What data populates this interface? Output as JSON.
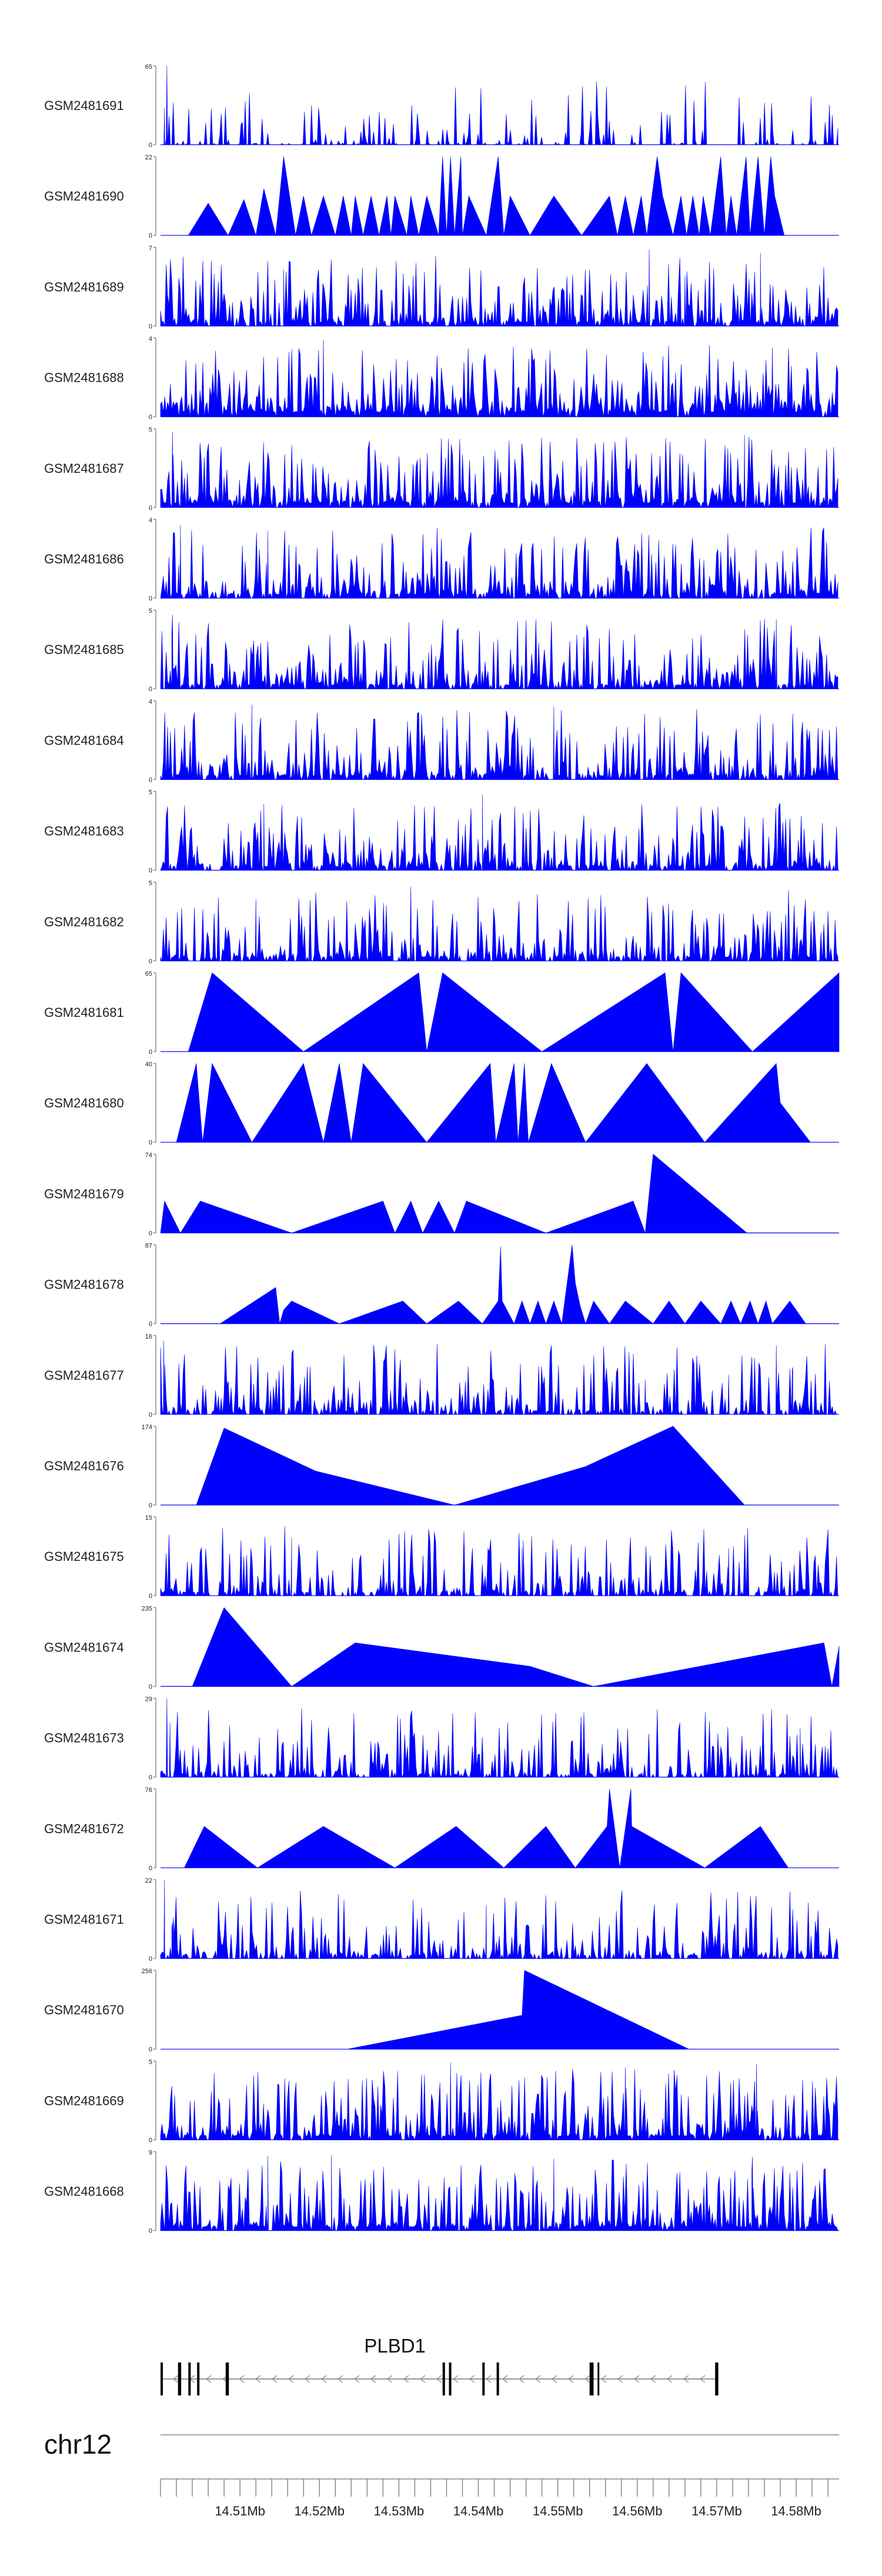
{
  "chart_data": {
    "type": "area",
    "color": "#0000FF",
    "x_axis": {
      "chromosome": "chr12",
      "range_mb": [
        14.5,
        14.5854
      ],
      "tick_labels": [
        "14.51Mb",
        "14.52Mb",
        "14.53Mb",
        "14.54Mb",
        "14.55Mb",
        "14.56Mb",
        "14.57Mb",
        "14.58Mb"
      ],
      "ticks_mb": [
        14.51,
        14.52,
        14.53,
        14.54,
        14.55,
        14.56,
        14.57,
        14.58
      ]
    },
    "tracks": [
      {
        "name": "GSM2481691",
        "ymax": 65,
        "pattern": "dense",
        "density": 0.3,
        "base": 0.04,
        "peaks": [
          [
            14.5008,
            65
          ],
          [
            14.5005,
            30
          ]
        ]
      },
      {
        "name": "GSM2481690",
        "ymax": 22,
        "pattern": "spikes",
        "points": [
          [
            14.5035,
            0
          ],
          [
            14.506,
            9
          ],
          [
            14.5085,
            0
          ],
          [
            14.5105,
            10
          ],
          [
            14.512,
            0
          ],
          [
            14.513,
            13
          ],
          [
            14.5145,
            0
          ],
          [
            14.5155,
            22
          ],
          [
            14.517,
            0
          ],
          [
            14.518,
            11
          ],
          [
            14.519,
            0
          ],
          [
            14.5205,
            11
          ],
          [
            14.522,
            0
          ],
          [
            14.523,
            11
          ],
          [
            14.524,
            0
          ],
          [
            14.5245,
            11
          ],
          [
            14.5255,
            0
          ],
          [
            14.5265,
            11
          ],
          [
            14.5275,
            0
          ],
          [
            14.5285,
            11
          ],
          [
            14.529,
            0
          ],
          [
            14.5295,
            11
          ],
          [
            14.531,
            0
          ],
          [
            14.5315,
            11
          ],
          [
            14.5325,
            0
          ],
          [
            14.5335,
            11
          ],
          [
            14.535,
            0
          ],
          [
            14.5355,
            22
          ],
          [
            14.536,
            0
          ],
          [
            14.5365,
            22
          ],
          [
            14.537,
            0
          ],
          [
            14.5378,
            22
          ],
          [
            14.538,
            0
          ],
          [
            14.5388,
            11
          ],
          [
            14.541,
            0
          ],
          [
            14.5425,
            22
          ],
          [
            14.5432,
            0
          ],
          [
            14.544,
            11
          ],
          [
            14.5465,
            0
          ],
          [
            14.5495,
            11
          ],
          [
            14.553,
            0
          ],
          [
            14.5565,
            11
          ],
          [
            14.5575,
            0
          ],
          [
            14.5585,
            11
          ],
          [
            14.5595,
            0
          ],
          [
            14.5605,
            11
          ],
          [
            14.5612,
            0
          ],
          [
            14.5625,
            22
          ],
          [
            14.5632,
            11
          ],
          [
            14.5645,
            0
          ],
          [
            14.5655,
            11
          ],
          [
            14.5662,
            0
          ],
          [
            14.567,
            11
          ],
          [
            14.5678,
            0
          ],
          [
            14.5683,
            11
          ],
          [
            14.5692,
            0
          ],
          [
            14.5705,
            22
          ],
          [
            14.5712,
            0
          ],
          [
            14.5718,
            11
          ],
          [
            14.5725,
            0
          ],
          [
            14.5737,
            22
          ],
          [
            14.5742,
            0
          ],
          [
            14.5752,
            22
          ],
          [
            14.576,
            0
          ],
          [
            14.5768,
            22
          ],
          [
            14.5773,
            11
          ],
          [
            14.5785,
            0
          ]
        ]
      },
      {
        "name": "GSM2481689",
        "ymax": 7,
        "pattern": "dense",
        "density": 0.75,
        "base": 0.12,
        "peaks": [
          [
            14.5155,
            5
          ],
          [
            14.5615,
            6.8
          ],
          [
            14.566,
            4.5
          ],
          [
            14.5755,
            6.5
          ]
        ]
      },
      {
        "name": "GSM2481688",
        "ymax": 4,
        "pattern": "dense",
        "density": 0.9,
        "base": 0.15,
        "peaks": [
          [
            14.5205,
            3.9
          ],
          [
            14.577,
            3.5
          ]
        ]
      },
      {
        "name": "GSM2481687",
        "ymax": 5,
        "pattern": "dense",
        "density": 0.85,
        "base": 0.14,
        "peaks": [
          [
            14.5015,
            4.8
          ],
          [
            14.5735,
            4.6
          ]
        ]
      },
      {
        "name": "GSM2481686",
        "ymax": 4,
        "pattern": "dense",
        "density": 0.8,
        "base": 0.12,
        "peaks": [
          [
            14.5025,
            3.7
          ],
          [
            14.5135,
            3.4
          ]
        ]
      },
      {
        "name": "GSM2481685",
        "ymax": 5,
        "pattern": "dense",
        "density": 0.8,
        "base": 0.12,
        "peaks": [
          [
            14.5015,
            4.7
          ],
          [
            14.5775,
            4.4
          ]
        ]
      },
      {
        "name": "GSM2481684",
        "ymax": 4,
        "pattern": "dense",
        "density": 0.8,
        "base": 0.12,
        "peaks": [
          [
            14.5115,
            3.8
          ],
          [
            14.5495,
            3.7
          ]
        ]
      },
      {
        "name": "GSM2481683",
        "ymax": 5,
        "pattern": "dense",
        "density": 0.75,
        "base": 0.12,
        "peaks": [
          [
            14.5405,
            4.8
          ],
          [
            14.513,
            4.2
          ]
        ]
      },
      {
        "name": "GSM2481682",
        "ymax": 5,
        "pattern": "dense",
        "density": 0.7,
        "base": 0.12,
        "peaks": [
          [
            14.5315,
            4.7
          ],
          [
            14.512,
            3.9
          ]
        ]
      },
      {
        "name": "GSM2481681",
        "ymax": 65,
        "pattern": "spikes",
        "points": [
          [
            14.5035,
            0
          ],
          [
            14.5065,
            65
          ],
          [
            14.518,
            0
          ],
          [
            14.5325,
            65
          ],
          [
            14.5335,
            0
          ],
          [
            14.5355,
            65
          ],
          [
            14.548,
            0
          ],
          [
            14.5635,
            65
          ],
          [
            14.5645,
            0
          ],
          [
            14.5655,
            65
          ],
          [
            14.5745,
            0
          ],
          [
            14.5854,
            65
          ]
        ]
      },
      {
        "name": "GSM2481680",
        "ymax": 40,
        "pattern": "spikes",
        "points": [
          [
            14.502,
            0
          ],
          [
            14.5045,
            40
          ],
          [
            14.5053,
            0
          ],
          [
            14.5065,
            40
          ],
          [
            14.5115,
            0
          ],
          [
            14.518,
            40
          ],
          [
            14.5205,
            0
          ],
          [
            14.5225,
            40
          ],
          [
            14.524,
            0
          ],
          [
            14.5255,
            40
          ],
          [
            14.5335,
            0
          ],
          [
            14.5415,
            40
          ],
          [
            14.5422,
            0
          ],
          [
            14.5445,
            40
          ],
          [
            14.545,
            0
          ],
          [
            14.5458,
            40
          ],
          [
            14.5463,
            0
          ],
          [
            14.5492,
            40
          ],
          [
            14.5535,
            0
          ],
          [
            14.5612,
            40
          ],
          [
            14.5685,
            0
          ],
          [
            14.5775,
            40
          ],
          [
            14.578,
            20
          ],
          [
            14.5818,
            0
          ]
        ]
      },
      {
        "name": "GSM2481679",
        "ymax": 74,
        "pattern": "spikes",
        "points": [
          [
            14.5,
            0
          ],
          [
            14.5005,
            30
          ],
          [
            14.5025,
            0
          ],
          [
            14.505,
            30
          ],
          [
            14.5165,
            0
          ],
          [
            14.528,
            30
          ],
          [
            14.5295,
            0
          ],
          [
            14.5315,
            30
          ],
          [
            14.533,
            0
          ],
          [
            14.535,
            30
          ],
          [
            14.537,
            0
          ],
          [
            14.5385,
            30
          ],
          [
            14.5485,
            0
          ],
          [
            14.5595,
            30
          ],
          [
            14.561,
            0
          ],
          [
            14.562,
            74
          ],
          [
            14.5738,
            0
          ]
        ]
      },
      {
        "name": "GSM2481678",
        "ymax": 87,
        "pattern": "spikes",
        "points": [
          [
            14.5075,
            0
          ],
          [
            14.5145,
            40
          ],
          [
            14.515,
            0
          ],
          [
            14.5155,
            15
          ],
          [
            14.5165,
            25
          ],
          [
            14.5225,
            0
          ],
          [
            14.5305,
            25
          ],
          [
            14.5335,
            0
          ],
          [
            14.5375,
            25
          ],
          [
            14.5405,
            0
          ],
          [
            14.5425,
            25
          ],
          [
            14.5428,
            85
          ],
          [
            14.543,
            25
          ],
          [
            14.5445,
            0
          ],
          [
            14.5455,
            25
          ],
          [
            14.5465,
            0
          ],
          [
            14.5475,
            25
          ],
          [
            14.5485,
            0
          ],
          [
            14.5495,
            25
          ],
          [
            14.5505,
            0
          ],
          [
            14.5518,
            87
          ],
          [
            14.5522,
            45
          ],
          [
            14.5528,
            20
          ],
          [
            14.5535,
            0
          ],
          [
            14.5545,
            25
          ],
          [
            14.5565,
            0
          ],
          [
            14.5585,
            25
          ],
          [
            14.562,
            0
          ],
          [
            14.564,
            25
          ],
          [
            14.566,
            0
          ],
          [
            14.568,
            25
          ],
          [
            14.5705,
            0
          ],
          [
            14.5718,
            25
          ],
          [
            14.573,
            0
          ],
          [
            14.5742,
            25
          ],
          [
            14.5752,
            0
          ],
          [
            14.5762,
            25
          ],
          [
            14.577,
            0
          ],
          [
            14.5792,
            25
          ],
          [
            14.5812,
            0
          ]
        ]
      },
      {
        "name": "GSM2481677",
        "ymax": 16,
        "pattern": "dense",
        "density": 0.65,
        "base": 0.1,
        "peaks": [
          [
            14.5004,
            15
          ],
          [
            14.561,
            7
          ],
          [
            14.5715,
            8
          ],
          [
            14.5775,
            14
          ],
          [
            14.5795,
            9
          ]
        ]
      },
      {
        "name": "GSM2481676",
        "ymax": 174,
        "pattern": "spikes",
        "points": [
          [
            14.5045,
            0
          ],
          [
            14.508,
            170
          ],
          [
            14.5195,
            75
          ],
          [
            14.537,
            0
          ],
          [
            14.5535,
            85
          ],
          [
            14.5645,
            174
          ],
          [
            14.5735,
            0
          ]
        ]
      },
      {
        "name": "GSM2481675",
        "ymax": 15,
        "pattern": "dense",
        "density": 0.65,
        "base": 0.1,
        "peaks": [
          [
            14.5165,
            11
          ],
          [
            14.5455,
            9
          ],
          [
            14.5715,
            9
          ]
        ]
      },
      {
        "name": "GSM2481674",
        "ymax": 235,
        "pattern": "spikes",
        "points": [
          [
            14.504,
            0
          ],
          [
            14.508,
            235
          ],
          [
            14.5165,
            0
          ],
          [
            14.5245,
            130
          ],
          [
            14.5465,
            60
          ],
          [
            14.5545,
            0
          ],
          [
            14.5835,
            130
          ],
          [
            14.5845,
            0
          ],
          [
            14.5854,
            120
          ]
        ]
      },
      {
        "name": "GSM2481673",
        "ymax": 29,
        "pattern": "dense",
        "density": 0.6,
        "base": 0.08,
        "peaks": [
          [
            14.5008,
            29
          ],
          [
            14.5012,
            20
          ],
          [
            14.5805,
            18
          ]
        ]
      },
      {
        "name": "GSM2481672",
        "ymax": 76,
        "pattern": "spikes",
        "points": [
          [
            14.503,
            0
          ],
          [
            14.5055,
            40
          ],
          [
            14.5122,
            0
          ],
          [
            14.5205,
            40
          ],
          [
            14.5295,
            0
          ],
          [
            14.5372,
            40
          ],
          [
            14.5432,
            0
          ],
          [
            14.5485,
            40
          ],
          [
            14.5522,
            0
          ],
          [
            14.5562,
            40
          ],
          [
            14.5565,
            76
          ],
          [
            14.5578,
            0
          ],
          [
            14.5592,
            76
          ],
          [
            14.5593,
            40
          ],
          [
            14.5685,
            0
          ],
          [
            14.5755,
            40
          ],
          [
            14.579,
            0
          ]
        ]
      },
      {
        "name": "GSM2481671",
        "ymax": 22,
        "pattern": "dense",
        "density": 0.6,
        "base": 0.1,
        "peaks": [
          [
            14.5005,
            22
          ],
          [
            14.5015,
            10
          ],
          [
            14.541,
            15
          ]
        ]
      },
      {
        "name": "GSM2481670",
        "ymax": 256,
        "pattern": "spikes",
        "points": [
          [
            14.5235,
            0
          ],
          [
            14.5455,
            110
          ],
          [
            14.5458,
            256
          ],
          [
            14.5665,
            0
          ]
        ]
      },
      {
        "name": "GSM2481669",
        "ymax": 5,
        "pattern": "dense",
        "density": 0.85,
        "base": 0.12,
        "peaks": [
          [
            14.5365,
            4.9
          ],
          [
            14.5585,
            4.6
          ],
          [
            14.575,
            4.8
          ]
        ]
      },
      {
        "name": "GSM2481668",
        "ymax": 9,
        "pattern": "dense",
        "density": 0.85,
        "base": 0.12,
        "peaks": [
          [
            14.5135,
            8.5
          ],
          [
            14.5215,
            8.6
          ],
          [
            14.5495,
            8.2
          ],
          [
            14.5745,
            8.4
          ]
        ]
      }
    ],
    "gene": {
      "name": "PLBD1",
      "strand": "-",
      "start_mb": 14.5,
      "end_mb": 14.5702,
      "exons_mb": [
        [
          14.5,
          14.5003
        ],
        [
          14.5022,
          14.5026
        ],
        [
          14.5035,
          14.5038
        ],
        [
          14.5046,
          14.5049
        ],
        [
          14.5082,
          14.5086
        ],
        [
          14.5355,
          14.5358
        ],
        [
          14.5363,
          14.5366
        ],
        [
          14.5405,
          14.5408
        ],
        [
          14.5423,
          14.5426
        ],
        [
          14.554,
          14.5545
        ],
        [
          14.555,
          14.5552
        ],
        [
          14.5698,
          14.5702
        ]
      ]
    }
  }
}
